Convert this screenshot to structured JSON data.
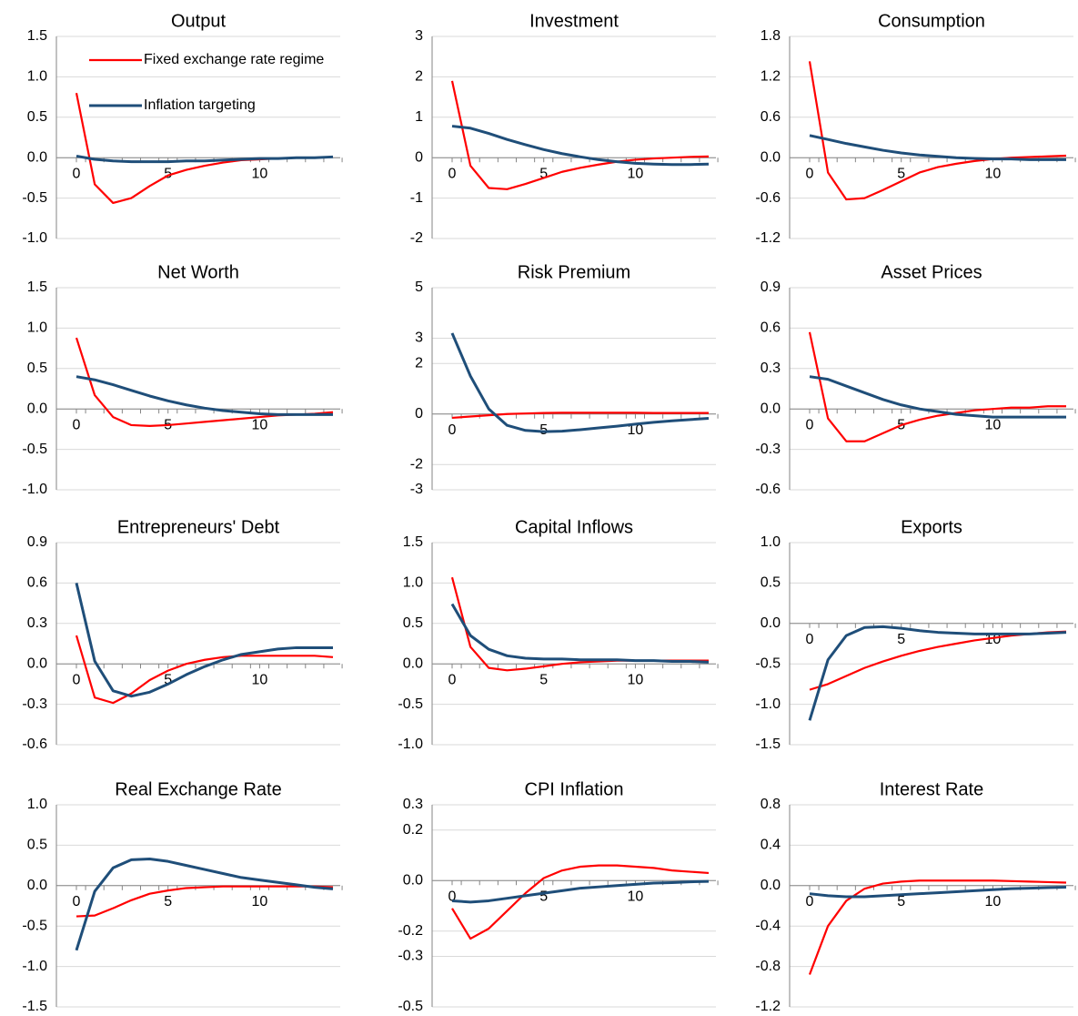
{
  "chart_data": [
    {
      "type": "line",
      "title": "Output",
      "legend": "upper left",
      "grid": true,
      "x": [
        0,
        1,
        2,
        3,
        4,
        5,
        6,
        7,
        8,
        9,
        10,
        11,
        12,
        13,
        14
      ],
      "xlim": [
        0,
        14
      ],
      "xticks": [
        0,
        5,
        10
      ],
      "ylim": [
        -1,
        1.5
      ],
      "yticks": [
        {
          "value": -1,
          "label": "-1.0"
        },
        -0.5,
        {
          "value": 0,
          "label": "0.0"
        },
        0.5,
        {
          "value": 1,
          "label": "1.0"
        },
        1.5
      ],
      "series": [
        {
          "name": "Fixed exchange rate regime",
          "color": "#ff0000",
          "values": [
            0.8,
            -0.33,
            -0.56,
            -0.5,
            -0.35,
            -0.22,
            -0.15,
            -0.1,
            -0.06,
            -0.03,
            -0.02,
            -0.01,
            0,
            0,
            0.01
          ]
        },
        {
          "name": "Inflation targeting",
          "color": "#1f4e79",
          "values": [
            0.02,
            -0.02,
            -0.04,
            -0.05,
            -0.05,
            -0.05,
            -0.04,
            -0.04,
            -0.03,
            -0.02,
            -0.01,
            -0.01,
            0,
            0,
            0.01
          ]
        }
      ]
    },
    {
      "type": "line",
      "title": "Investment",
      "grid": true,
      "x": [
        0,
        1,
        2,
        3,
        4,
        5,
        6,
        7,
        8,
        9,
        10,
        11,
        12,
        13,
        14
      ],
      "xlim": [
        0,
        14
      ],
      "xticks": [
        0,
        5,
        10
      ],
      "ylim": [
        -2,
        3
      ],
      "yticks": [
        -2,
        -1,
        0,
        1,
        2,
        3
      ],
      "series": [
        {
          "color": "#ff0000",
          "values": [
            1.9,
            -0.2,
            -0.75,
            -0.78,
            -0.65,
            -0.5,
            -0.35,
            -0.25,
            -0.17,
            -0.1,
            -0.05,
            -0.02,
            0,
            0.02,
            0.03
          ]
        },
        {
          "color": "#1f4e79",
          "values": [
            0.78,
            0.73,
            0.6,
            0.45,
            0.32,
            0.2,
            0.1,
            0.02,
            -0.05,
            -0.1,
            -0.14,
            -0.16,
            -0.17,
            -0.17,
            -0.16
          ]
        }
      ]
    },
    {
      "type": "line",
      "title": "Consumption",
      "grid": true,
      "x": [
        0,
        1,
        2,
        3,
        4,
        5,
        6,
        7,
        8,
        9,
        10,
        11,
        12,
        13,
        14
      ],
      "xlim": [
        0,
        14
      ],
      "xticks": [
        0,
        5,
        10
      ],
      "ylim": [
        -1.2,
        1.8
      ],
      "yticks": [
        -1.2,
        -0.6,
        {
          "value": 0,
          "label": "0.0"
        },
        0.6,
        1.2,
        1.8
      ],
      "series": [
        {
          "color": "#ff0000",
          "values": [
            1.43,
            -0.22,
            -0.62,
            -0.6,
            -0.48,
            -0.35,
            -0.22,
            -0.14,
            -0.09,
            -0.05,
            -0.02,
            0,
            0.01,
            0.02,
            0.03
          ]
        },
        {
          "color": "#1f4e79",
          "values": [
            0.33,
            0.27,
            0.21,
            0.16,
            0.11,
            0.07,
            0.04,
            0.02,
            0,
            -0.01,
            -0.02,
            -0.02,
            -0.03,
            -0.03,
            -0.03
          ]
        }
      ]
    },
    {
      "type": "line",
      "title": "Net Worth",
      "grid": true,
      "x": [
        0,
        1,
        2,
        3,
        4,
        5,
        6,
        7,
        8,
        9,
        10,
        11,
        12,
        13,
        14
      ],
      "xlim": [
        0,
        14
      ],
      "xticks": [
        0,
        5,
        10
      ],
      "ylim": [
        -1,
        1.5
      ],
      "yticks": [
        {
          "value": -1,
          "label": "-1.0"
        },
        -0.5,
        {
          "value": 0,
          "label": "0.0"
        },
        0.5,
        {
          "value": 1,
          "label": "1.0"
        },
        1.5
      ],
      "series": [
        {
          "color": "#ff0000",
          "values": [
            0.88,
            0.17,
            -0.1,
            -0.2,
            -0.21,
            -0.2,
            -0.18,
            -0.16,
            -0.14,
            -0.12,
            -0.1,
            -0.08,
            -0.07,
            -0.06,
            -0.04
          ]
        },
        {
          "color": "#1f4e79",
          "values": [
            0.4,
            0.36,
            0.3,
            0.23,
            0.16,
            0.1,
            0.05,
            0.01,
            -0.02,
            -0.04,
            -0.06,
            -0.07,
            -0.07,
            -0.07,
            -0.07
          ]
        }
      ]
    },
    {
      "type": "line",
      "title": "Risk Premium",
      "grid": true,
      "x": [
        0,
        1,
        2,
        3,
        4,
        5,
        6,
        7,
        8,
        9,
        10,
        11,
        12,
        13,
        14
      ],
      "xlim": [
        0,
        14
      ],
      "xticks": [
        0,
        5,
        10
      ],
      "ylim": [
        -3,
        5
      ],
      "yticks": [
        -3,
        -2,
        0,
        2,
        3,
        5
      ],
      "series": [
        {
          "color": "#ff0000",
          "values": [
            -0.15,
            -0.1,
            -0.05,
            0,
            0.02,
            0.04,
            0.05,
            0.05,
            0.05,
            0.05,
            0.05,
            0.04,
            0.04,
            0.04,
            0.04
          ]
        },
        {
          "color": "#1f4e79",
          "values": [
            3.2,
            1.5,
            0.2,
            -0.45,
            -0.65,
            -0.7,
            -0.68,
            -0.62,
            -0.55,
            -0.48,
            -0.4,
            -0.33,
            -0.27,
            -0.22,
            -0.17
          ]
        }
      ]
    },
    {
      "type": "line",
      "title": "Asset Prices",
      "grid": true,
      "x": [
        0,
        1,
        2,
        3,
        4,
        5,
        6,
        7,
        8,
        9,
        10,
        11,
        12,
        13,
        14
      ],
      "xlim": [
        0,
        14
      ],
      "xticks": [
        0,
        5,
        10
      ],
      "ylim": [
        -0.6,
        0.9
      ],
      "yticks": [
        -0.6,
        -0.3,
        {
          "value": 0,
          "label": "0.0"
        },
        0.3,
        0.6,
        0.9
      ],
      "series": [
        {
          "color": "#ff0000",
          "values": [
            0.57,
            -0.07,
            -0.24,
            -0.24,
            -0.18,
            -0.12,
            -0.08,
            -0.05,
            -0.03,
            -0.01,
            0,
            0.01,
            0.01,
            0.02,
            0.02
          ]
        },
        {
          "color": "#1f4e79",
          "values": [
            0.24,
            0.22,
            0.17,
            0.12,
            0.07,
            0.03,
            0,
            -0.02,
            -0.04,
            -0.05,
            -0.06,
            -0.06,
            -0.06,
            -0.06,
            -0.06
          ]
        }
      ]
    },
    {
      "type": "line",
      "title": "Entrepreneurs' Debt",
      "grid": true,
      "x": [
        0,
        1,
        2,
        3,
        4,
        5,
        6,
        7,
        8,
        9,
        10,
        11,
        12,
        13,
        14
      ],
      "xlim": [
        0,
        14
      ],
      "xticks": [
        0,
        5,
        10
      ],
      "ylim": [
        -0.6,
        0.9
      ],
      "yticks": [
        -0.6,
        -0.3,
        {
          "value": 0,
          "label": "0.0"
        },
        0.3,
        0.6,
        0.9
      ],
      "series": [
        {
          "color": "#ff0000",
          "values": [
            0.21,
            -0.25,
            -0.29,
            -0.22,
            -0.12,
            -0.05,
            0,
            0.03,
            0.05,
            0.06,
            0.06,
            0.06,
            0.06,
            0.06,
            0.05
          ]
        },
        {
          "color": "#1f4e79",
          "values": [
            0.6,
            0.02,
            -0.2,
            -0.24,
            -0.21,
            -0.15,
            -0.08,
            -0.02,
            0.03,
            0.07,
            0.09,
            0.11,
            0.12,
            0.12,
            0.12
          ]
        }
      ]
    },
    {
      "type": "line",
      "title": "Capital Inflows",
      "grid": true,
      "x": [
        0,
        1,
        2,
        3,
        4,
        5,
        6,
        7,
        8,
        9,
        10,
        11,
        12,
        13,
        14
      ],
      "xlim": [
        0,
        14
      ],
      "xticks": [
        0,
        5,
        10
      ],
      "ylim": [
        -1,
        1.5
      ],
      "yticks": [
        {
          "value": -1,
          "label": "-1.0"
        },
        -0.5,
        {
          "value": 0,
          "label": "0.0"
        },
        0.5,
        {
          "value": 1,
          "label": "1.0"
        },
        1.5
      ],
      "series": [
        {
          "color": "#ff0000",
          "values": [
            1.07,
            0.21,
            -0.05,
            -0.08,
            -0.06,
            -0.03,
            0,
            0.02,
            0.03,
            0.04,
            0.04,
            0.04,
            0.04,
            0.04,
            0.04
          ]
        },
        {
          "color": "#1f4e79",
          "values": [
            0.74,
            0.35,
            0.18,
            0.1,
            0.07,
            0.06,
            0.06,
            0.05,
            0.05,
            0.05,
            0.04,
            0.04,
            0.03,
            0.03,
            0.02
          ]
        }
      ]
    },
    {
      "type": "line",
      "title": "Exports",
      "grid": true,
      "x": [
        0,
        1,
        2,
        3,
        4,
        5,
        6,
        7,
        8,
        9,
        10,
        11,
        12,
        13,
        14
      ],
      "xlim": [
        0,
        14
      ],
      "xticks": [
        0,
        5,
        10
      ],
      "ylim": [
        -1.5,
        1
      ],
      "yticks": [
        -1.5,
        {
          "value": -1,
          "label": "-1.0"
        },
        -0.5,
        {
          "value": 0,
          "label": "0.0"
        },
        0.5,
        {
          "value": 1,
          "label": "1.0"
        }
      ],
      "series": [
        {
          "color": "#ff0000",
          "values": [
            -0.82,
            -0.75,
            -0.65,
            -0.55,
            -0.47,
            -0.4,
            -0.34,
            -0.29,
            -0.25,
            -0.21,
            -0.18,
            -0.15,
            -0.13,
            -0.11,
            -0.1
          ]
        },
        {
          "color": "#1f4e79",
          "values": [
            -1.2,
            -0.45,
            -0.15,
            -0.05,
            -0.04,
            -0.06,
            -0.09,
            -0.11,
            -0.12,
            -0.13,
            -0.13,
            -0.13,
            -0.13,
            -0.12,
            -0.11
          ]
        }
      ]
    },
    {
      "type": "line",
      "title": "Real Exchange Rate",
      "grid": true,
      "x": [
        0,
        1,
        2,
        3,
        4,
        5,
        6,
        7,
        8,
        9,
        10,
        11,
        12,
        13,
        14
      ],
      "xlim": [
        0,
        14
      ],
      "xticks": [
        0,
        5,
        10
      ],
      "ylim": [
        -1.5,
        1
      ],
      "yticks": [
        -1.5,
        {
          "value": -1,
          "label": "-1.0"
        },
        -0.5,
        {
          "value": 0,
          "label": "0.0"
        },
        0.5,
        {
          "value": 1,
          "label": "1.0"
        }
      ],
      "series": [
        {
          "color": "#ff0000",
          "values": [
            -0.38,
            -0.37,
            -0.28,
            -0.18,
            -0.1,
            -0.06,
            -0.03,
            -0.02,
            -0.01,
            -0.01,
            -0.01,
            -0.01,
            -0.01,
            -0.01,
            -0.02
          ]
        },
        {
          "color": "#1f4e79",
          "values": [
            -0.8,
            -0.07,
            0.22,
            0.32,
            0.33,
            0.3,
            0.25,
            0.2,
            0.15,
            0.1,
            0.07,
            0.04,
            0.01,
            -0.02,
            -0.04
          ]
        }
      ]
    },
    {
      "type": "line",
      "title": "CPI Inflation",
      "grid": true,
      "x": [
        0,
        1,
        2,
        3,
        4,
        5,
        6,
        7,
        8,
        9,
        10,
        11,
        12,
        13,
        14
      ],
      "xlim": [
        0,
        14
      ],
      "xticks": [
        0,
        5,
        10
      ],
      "ylim": [
        -0.5,
        0.3
      ],
      "yticks": [
        -0.5,
        -0.3,
        -0.2,
        {
          "value": 0,
          "label": "0.0"
        },
        0.2,
        0.3
      ],
      "series": [
        {
          "color": "#ff0000",
          "values": [
            -0.11,
            -0.23,
            -0.19,
            -0.12,
            -0.05,
            0.01,
            0.04,
            0.055,
            0.06,
            0.06,
            0.055,
            0.05,
            0.04,
            0.035,
            0.03
          ]
        },
        {
          "color": "#1f4e79",
          "values": [
            -0.08,
            -0.085,
            -0.08,
            -0.07,
            -0.06,
            -0.05,
            -0.04,
            -0.03,
            -0.025,
            -0.02,
            -0.015,
            -0.01,
            -0.008,
            -0.005,
            -0.003
          ]
        }
      ]
    },
    {
      "type": "line",
      "title": "Interest Rate",
      "grid": true,
      "x": [
        0,
        1,
        2,
        3,
        4,
        5,
        6,
        7,
        8,
        9,
        10,
        11,
        12,
        13,
        14
      ],
      "xlim": [
        0,
        14
      ],
      "xticks": [
        0,
        5,
        10
      ],
      "ylim": [
        -1.2,
        0.8
      ],
      "yticks": [
        -1.2,
        -0.8,
        -0.4,
        {
          "value": 0,
          "label": "0.0"
        },
        0.4,
        0.8
      ],
      "series": [
        {
          "color": "#ff0000",
          "values": [
            -0.88,
            -0.4,
            -0.15,
            -0.03,
            0.02,
            0.04,
            0.05,
            0.05,
            0.05,
            0.05,
            0.05,
            0.045,
            0.04,
            0.035,
            0.03
          ]
        },
        {
          "color": "#1f4e79",
          "values": [
            -0.08,
            -0.1,
            -0.11,
            -0.11,
            -0.1,
            -0.09,
            -0.08,
            -0.07,
            -0.06,
            -0.05,
            -0.04,
            -0.03,
            -0.025,
            -0.02,
            -0.015
          ]
        }
      ]
    }
  ]
}
